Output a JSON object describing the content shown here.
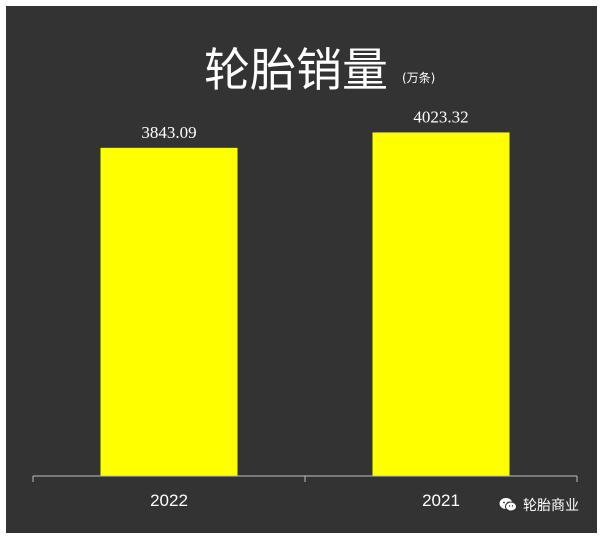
{
  "chart_data": {
    "type": "bar",
    "title": "轮胎销量",
    "unit": "(万条)",
    "categories": [
      "2022",
      "2021"
    ],
    "values": [
      3843.09,
      4023.32
    ],
    "value_labels": [
      "3843.09",
      "4023.32"
    ],
    "ylim": [
      0,
      4450
    ],
    "grid": false,
    "legend": "none",
    "colors": {
      "background": "#333333",
      "bar": "#ffff00",
      "text": "#ffffff",
      "axis": "#bfbfbf"
    }
  },
  "watermark": {
    "text": "轮胎商业",
    "icon": "wechat-icon"
  }
}
